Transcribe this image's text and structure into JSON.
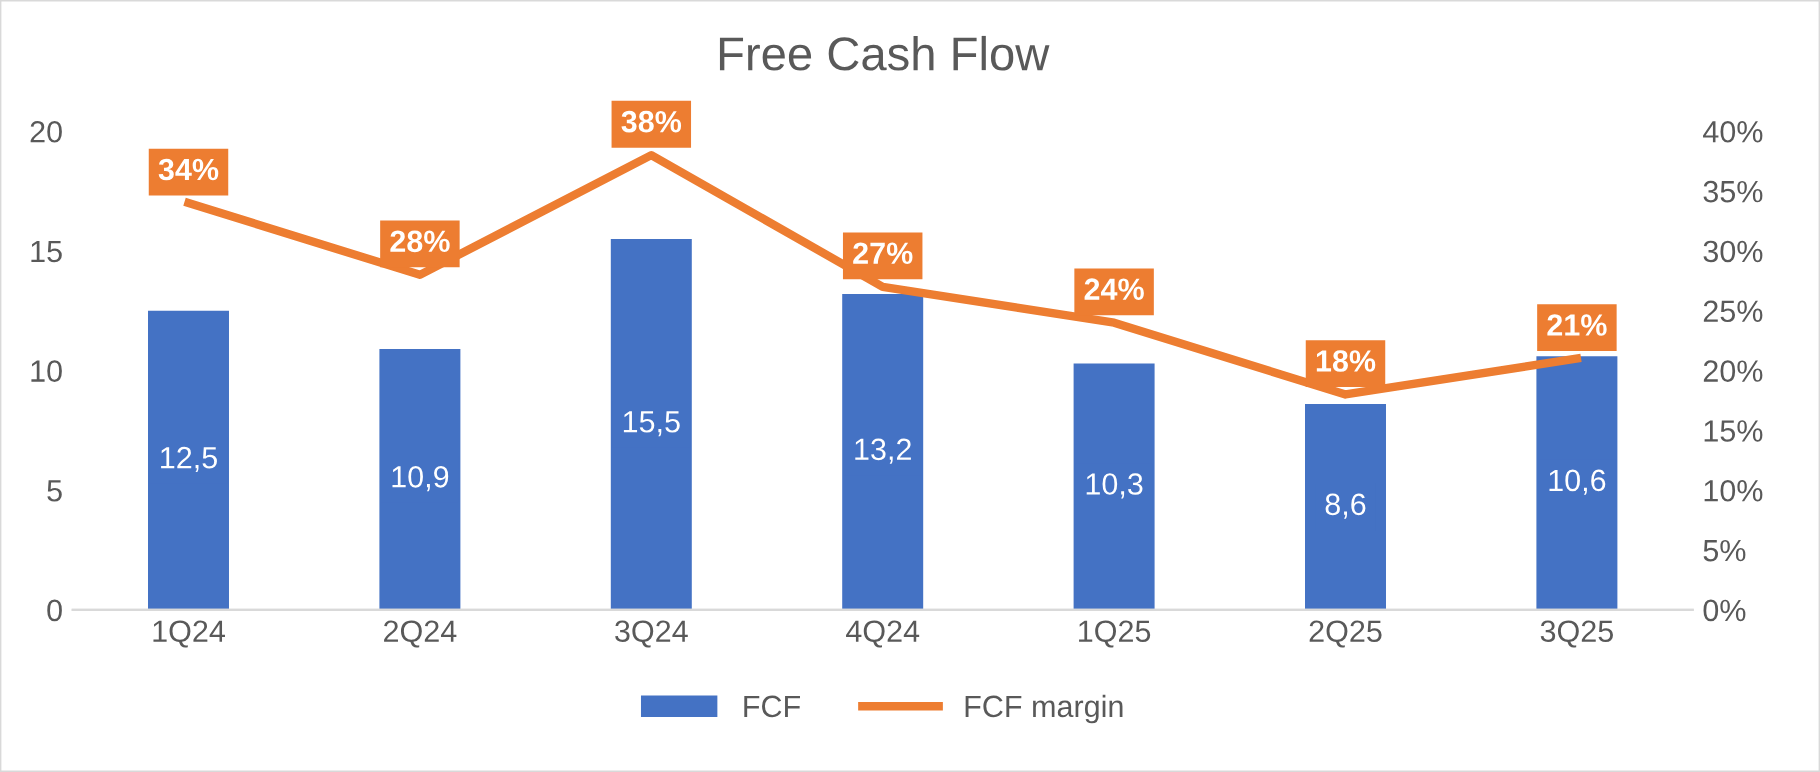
{
  "chart_data": {
    "type": "bar",
    "title": "Free Cash Flow",
    "categories": [
      "1Q24",
      "2Q24",
      "3Q24",
      "4Q24",
      "1Q25",
      "2Q25",
      "3Q25"
    ],
    "series": [
      {
        "name": "FCF",
        "color": "#4472c4",
        "values": [
          12.5,
          10.9,
          15.5,
          13.2,
          10.3,
          8.6,
          10.6
        ],
        "value_labels": [
          "12,5",
          "10,9",
          "15,5",
          "13,2",
          "10,3",
          "8,6",
          "10,6"
        ]
      },
      {
        "name": "FCF margin",
        "type": "line",
        "axis": "y2",
        "color": "#ed7d31",
        "values": [
          34,
          28,
          38,
          27,
          24,
          18,
          21
        ],
        "value_labels": [
          "34%",
          "28%",
          "38%",
          "27%",
          "24%",
          "18%",
          "21%"
        ]
      }
    ],
    "ylim": [
      0,
      20
    ],
    "yticks": [
      0,
      5,
      10,
      15,
      20
    ],
    "y2lim": [
      0,
      40
    ],
    "y2ticks": [
      {
        "value": 0,
        "label": "0%"
      },
      {
        "value": 5,
        "label": "5%"
      },
      {
        "value": 10,
        "label": "10%"
      },
      {
        "value": 15,
        "label": "15%"
      },
      {
        "value": 20,
        "label": "20%"
      },
      {
        "value": 25,
        "label": "25%"
      },
      {
        "value": 30,
        "label": "30%"
      },
      {
        "value": 35,
        "label": "35%"
      },
      {
        "value": 40,
        "label": "40%"
      }
    ],
    "grid": false,
    "legend": "bottom",
    "line_style": "solid"
  }
}
